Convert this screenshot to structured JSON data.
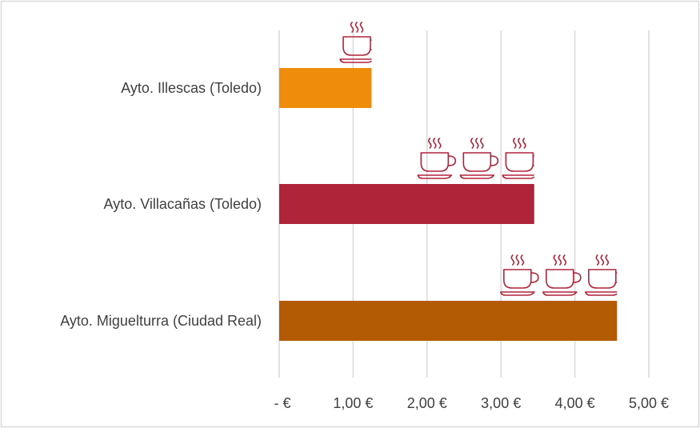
{
  "chart_data": {
    "type": "bar",
    "orientation": "horizontal",
    "title": "",
    "xlabel": "",
    "ylabel": "",
    "categories": [
      "Ayto. Illescas (Toledo)",
      "Ayto. Villacañas (Toledo)",
      "Ayto. Miguelturra (Ciudad Real)"
    ],
    "values": [
      1.25,
      3.45,
      4.57
    ],
    "bar_colors": [
      "#F08C0C",
      "#B0243A",
      "#B35A04"
    ],
    "xlim": [
      0,
      5
    ],
    "x_ticks": [
      0,
      1,
      2,
      3,
      4,
      5
    ],
    "x_tick_labels": [
      "-  €",
      "1,00 €",
      "2,00 €",
      "3,00 €",
      "4,00 €",
      "5,00 €"
    ],
    "grid": "vertical",
    "legend": "none",
    "icon": "coffee-cup-icon",
    "icon_color": "#B0243A",
    "icon_counts": [
      1,
      3,
      3
    ]
  }
}
